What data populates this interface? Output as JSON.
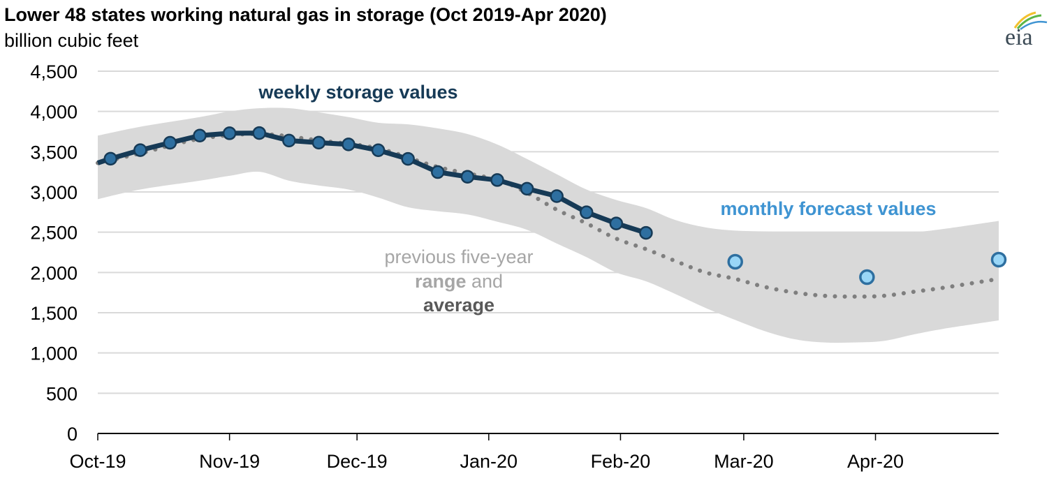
{
  "header": {
    "title": "Lower 48 states working natural gas in storage (Oct 2019-Apr 2020)",
    "subtitle": "billion cubic feet",
    "logo_text": "eia"
  },
  "colors": {
    "weekly_line": "#163a56",
    "weekly_marker": "#2e6fa0",
    "forecast_marker_fill": "#99d6f7",
    "forecast_marker_stroke": "#2e6fa0",
    "range_band": "#d9d9d9",
    "average_line": "#7f7f7f",
    "weekly_label": "#163a56",
    "forecast_label": "#3f94d2",
    "range_label": "#a6a6a6",
    "average_label": "#595959",
    "grid": "#d9d9d9"
  },
  "chart_data": {
    "type": "line",
    "title": "Lower 48 states working natural gas in storage (Oct 2019-Apr 2020)",
    "ylabel": "billion cubic feet",
    "xlabel": "",
    "ylim": [
      0,
      4500
    ],
    "yticks": [
      0,
      500,
      1000,
      1500,
      2000,
      2500,
      3000,
      3500,
      4000,
      4500
    ],
    "ytick_labels": [
      "0",
      "500",
      "1,000",
      "1,500",
      "2,000",
      "2,500",
      "3,000",
      "3,500",
      "4,000",
      "4,500"
    ],
    "x_unit": "days since Oct 1, 2019",
    "xlim": [
      0,
      212
    ],
    "xticks": [
      0,
      31,
      61,
      92,
      123,
      152,
      183
    ],
    "xtick_labels": [
      "Oct-19",
      "Nov-19",
      "Dec-19",
      "Jan-20",
      "Feb-20",
      "Mar-20",
      "Apr-20"
    ],
    "grid": true,
    "annotations": {
      "weekly": "weekly storage values",
      "forecast": "monthly forecast values",
      "range_line1": "previous five-year",
      "range_word": "range",
      "and_word": " and",
      "average_word": "average"
    },
    "series": [
      {
        "name": "weekly storage values",
        "type": "line+markers",
        "x": [
          3,
          10,
          17,
          24,
          31,
          38,
          45,
          52,
          59,
          66,
          73,
          80,
          87,
          94,
          101,
          108,
          115,
          122,
          129
        ],
        "values": [
          3413,
          3519,
          3611,
          3700,
          3729,
          3732,
          3638,
          3612,
          3591,
          3518,
          3411,
          3247,
          3189,
          3148,
          3040,
          2948,
          2747,
          2609,
          2492
        ]
      },
      {
        "name": "monthly forecast values",
        "type": "markers",
        "x": [
          150,
          181,
          212
        ],
        "values": [
          2133,
          1942,
          2159
        ]
      },
      {
        "name": "previous five-year average",
        "type": "dotted-line",
        "x": [
          0,
          10,
          24,
          38,
          52,
          66,
          80,
          94,
          101,
          108,
          115,
          122,
          129,
          136,
          143,
          150,
          157,
          164,
          171,
          178,
          185,
          192,
          199,
          212
        ],
        "values": [
          3360,
          3480,
          3660,
          3720,
          3640,
          3540,
          3310,
          3150,
          2990,
          2780,
          2610,
          2420,
          2290,
          2140,
          2000,
          1920,
          1820,
          1750,
          1710,
          1700,
          1710,
          1760,
          1810,
          1920
        ]
      },
      {
        "name": "previous five-year range",
        "type": "band",
        "x": [
          0,
          10,
          24,
          31,
          38,
          45,
          52,
          59,
          66,
          73,
          80,
          87,
          94,
          101,
          108,
          115,
          122,
          129,
          136,
          143,
          150,
          157,
          164,
          171,
          178,
          185,
          192,
          199,
          212
        ],
        "upper": [
          3700,
          3810,
          3930,
          4000,
          4040,
          4040,
          3990,
          3930,
          3860,
          3840,
          3790,
          3720,
          3590,
          3410,
          3220,
          3030,
          2900,
          2800,
          2650,
          2560,
          2520,
          2510,
          2500,
          2500,
          2500,
          2500,
          2500,
          2540,
          2640
        ],
        "lower": [
          2910,
          3030,
          3140,
          3200,
          3250,
          3140,
          3080,
          3030,
          2930,
          2810,
          2760,
          2720,
          2630,
          2530,
          2360,
          2190,
          2000,
          1890,
          1730,
          1560,
          1410,
          1270,
          1170,
          1130,
          1130,
          1150,
          1230,
          1300,
          1405
        ]
      }
    ]
  }
}
